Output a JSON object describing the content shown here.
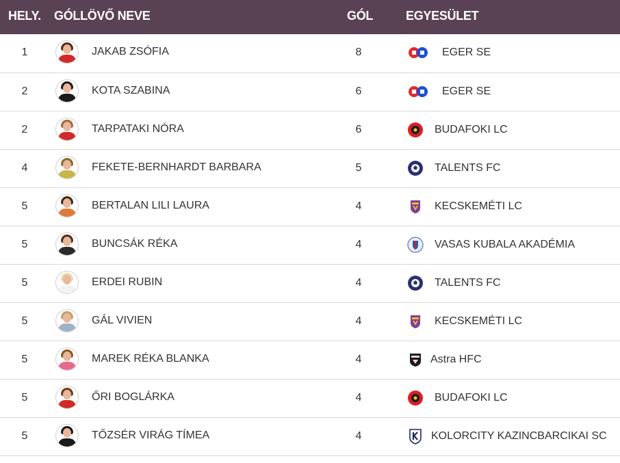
{
  "header": {
    "rank": "HELY.",
    "name": "GÓLLÖVŐ NEVE",
    "goals": "GÓL",
    "club": "EGYESÜLET"
  },
  "colors": {
    "header_bg": "#5a4255",
    "header_text": "#ffffff",
    "row_divider": "#d9d9d9"
  },
  "rows": [
    {
      "rank": "1",
      "name": "JAKAB ZSÓFIA",
      "goals": "8",
      "club": "EGER SE",
      "logo": "eger-se-logo-icon"
    },
    {
      "rank": "2",
      "name": "KOTA SZABINA",
      "goals": "6",
      "club": "EGER SE",
      "logo": "eger-se-logo-icon"
    },
    {
      "rank": "2",
      "name": "TARPATAKI NÓRA",
      "goals": "6",
      "club": "BUDAFOKI LC",
      "logo": "budafoki-lc-logo-icon"
    },
    {
      "rank": "4",
      "name": "FEKETE-BERNHARDT BARBARA",
      "goals": "5",
      "club": "TALENTS FC",
      "logo": "talents-fc-logo-icon"
    },
    {
      "rank": "5",
      "name": "BERTALAN LILI LAURA",
      "goals": "4",
      "club": "KECSKEMÉTI LC",
      "logo": "kecskemeti-lc-logo-icon"
    },
    {
      "rank": "5",
      "name": "BUNCSÁK RÉKA",
      "goals": "4",
      "club": "VASAS KUBALA AKADÉMIA",
      "logo": "vasas-kubala-logo-icon"
    },
    {
      "rank": "5",
      "name": "ERDEI RUBIN",
      "goals": "4",
      "club": "TALENTS FC",
      "logo": "talents-fc-logo-icon"
    },
    {
      "rank": "5",
      "name": "GÁL VIVIEN",
      "goals": "4",
      "club": "KECSKEMÉTI LC",
      "logo": "kecskemeti-lc-logo-icon"
    },
    {
      "rank": "5",
      "name": "MAREK RÉKA BLANKA",
      "goals": "4",
      "club": "Astra HFC",
      "logo": "astra-hfc-logo-icon"
    },
    {
      "rank": "5",
      "name": "ŐRI BOGLÁRKA",
      "goals": "4",
      "club": "BUDAFOKI LC",
      "logo": "budafoki-lc-logo-icon"
    },
    {
      "rank": "5",
      "name": "TŐZSÉR VIRÁG TÍMEA",
      "goals": "4",
      "club": "KOLORCITY KAZINCBARCIKAI SC",
      "logo": "kolorcity-kazincbarcika-logo-icon"
    }
  ]
}
